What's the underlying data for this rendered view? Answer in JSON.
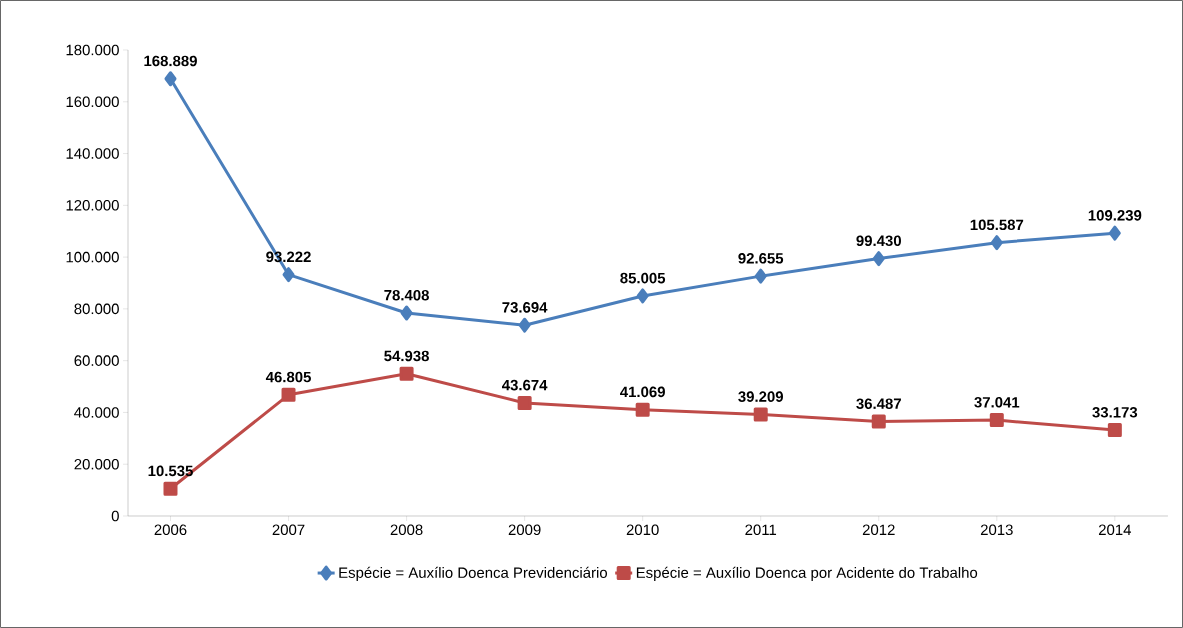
{
  "chart_data": {
    "type": "line",
    "categories": [
      "2006",
      "2007",
      "2008",
      "2009",
      "2010",
      "2011",
      "2012",
      "2013",
      "2014"
    ],
    "series": [
      {
        "name": "Espécie = Auxílio Doenca Previdenciário",
        "color": "#4a7ebb",
        "marker": "diamond",
        "values": [
          168889,
          93222,
          78408,
          73694,
          85005,
          92655,
          99430,
          105587,
          109239
        ],
        "value_labels": [
          "168.889",
          "93.222",
          "78.408",
          "73.694",
          "85.005",
          "92.655",
          "99.430",
          "105.587",
          "109.239"
        ]
      },
      {
        "name": "Espécie = Auxílio Doenca por Acidente do Trabalho",
        "color": "#be4b48",
        "marker": "square",
        "values": [
          10535,
          46805,
          54938,
          43674,
          41069,
          39209,
          36487,
          37041,
          33173
        ],
        "value_labels": [
          "10.535",
          "46.805",
          "54.938",
          "43.674",
          "41.069",
          "39.209",
          "36.487",
          "37.041",
          "33.173"
        ]
      }
    ],
    "ylim": [
      0,
      180000
    ],
    "yticks": [
      0,
      {
        "value": 20000,
        "label": "20.000"
      },
      {
        "value": 40000,
        "label": "40.000"
      },
      {
        "value": 60000,
        "label": "60.000"
      },
      {
        "value": 80000,
        "label": "80.000"
      },
      {
        "value": 100000,
        "label": "100.000"
      },
      {
        "value": 120000,
        "label": "120.000"
      },
      {
        "value": 140000,
        "label": "140.000"
      },
      {
        "value": 160000,
        "label": "160.000"
      },
      {
        "value": 180000,
        "label": "180.000"
      }
    ],
    "legend": "bottom",
    "grid": false,
    "line_style": "solid"
  }
}
